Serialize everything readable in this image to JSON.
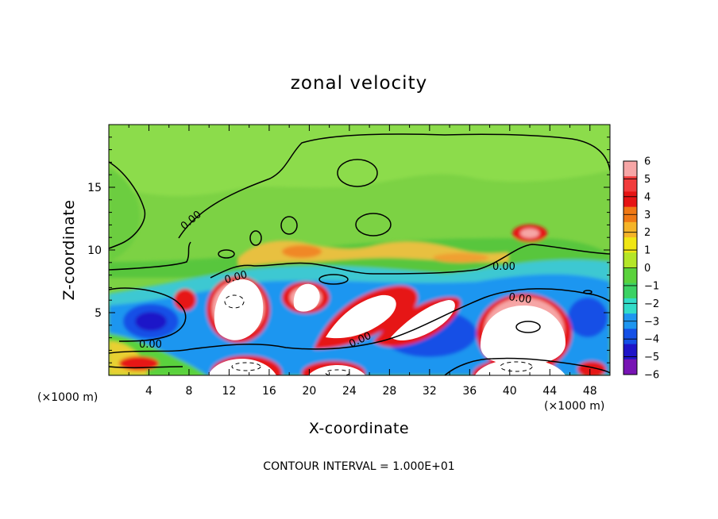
{
  "chart_data": {
    "type": "heatmap",
    "title": "zonal velocity",
    "xlabel": "X-coordinate",
    "ylabel": "Z-coordinate",
    "x_unit": "(×1000 m)",
    "xlim": [
      0,
      50
    ],
    "ylim": [
      0,
      20
    ],
    "xticks": [
      4,
      8,
      12,
      16,
      20,
      24,
      28,
      32,
      36,
      40,
      44,
      48
    ],
    "yticks": [
      5,
      10,
      15
    ],
    "colorbar": {
      "min": -6,
      "max": 6,
      "ticks": [
        6,
        5,
        4,
        3,
        2,
        1,
        0,
        -1,
        -2,
        -3,
        -4,
        -5,
        -6
      ],
      "colors": [
        "#f6a6a6",
        "#f23c3c",
        "#e61414",
        "#f07814",
        "#f5b428",
        "#f0e614",
        "#b4e628",
        "#5ad23c",
        "#3cd264",
        "#32dcc8",
        "#1e96f0",
        "#1450e6",
        "#1e14c8",
        "#7814b4"
      ]
    },
    "contour_labels": [
      "0.00",
      "0.00",
      "0.00",
      "0.00",
      "0.00",
      "0.00"
    ],
    "note": "CONTOUR INTERVAL = 1.000E+01"
  }
}
